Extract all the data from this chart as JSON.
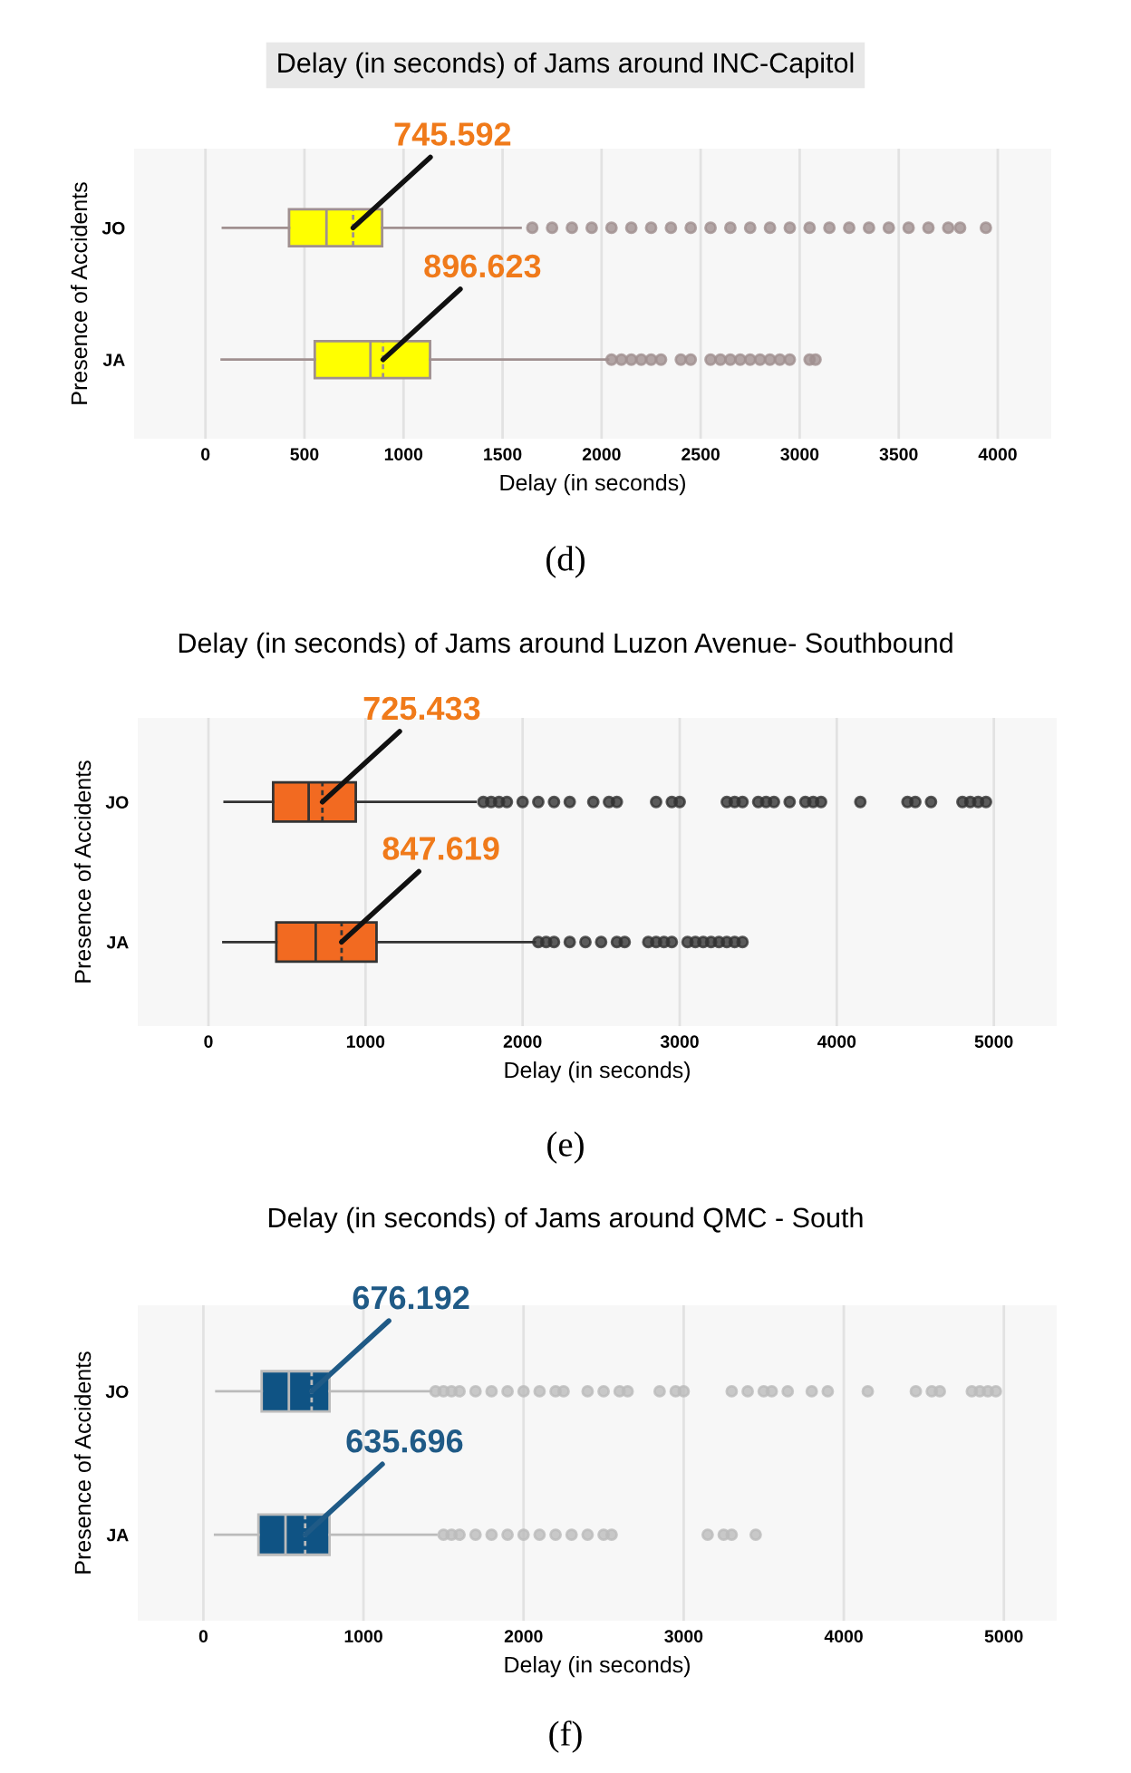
{
  "chart_data": [
    {
      "type": "box",
      "title": "Delay (in seconds) of Jams around INC-Capitol",
      "xlabel": "Delay (in seconds)",
      "ylabel": "Presence of Accidents",
      "orientation": "horizontal",
      "categories": [
        "JO",
        "JA"
      ],
      "xlim": [
        -360,
        4270
      ],
      "xticks": [
        0,
        500,
        1000,
        1500,
        2000,
        2500,
        3000,
        3500,
        4000
      ],
      "grid": "x",
      "series": [
        {
          "color": "#ffff00",
          "boxes": [
            {
              "low": 88,
              "q1": 422,
              "median": 611,
              "q3": 892,
              "high": 1591,
              "mean": 745.592,
              "outliers": [
                1650,
                1750,
                1850,
                1950,
                2050,
                2150,
                2250,
                2350,
                2450,
                2550,
                2650,
                2750,
                2850,
                2950,
                3050,
                3150,
                3250,
                3350,
                3450,
                3550,
                3650,
                3750,
                3810,
                3940
              ]
            },
            {
              "low": 82,
              "q1": 552,
              "median": 833,
              "q3": 1134,
              "high": 2033,
              "mean": 896.623,
              "outliers": [
                2050,
                2100,
                2150,
                2200,
                2250,
                2300,
                2400,
                2450,
                2550,
                2600,
                2650,
                2700,
                2750,
                2800,
                2850,
                2900,
                2950,
                3050,
                3080
              ]
            }
          ]
        }
      ],
      "annotations": [
        {
          "text": "745.592",
          "x": 745.592,
          "y": "JO"
        },
        {
          "text": "896.623",
          "x": 896.623,
          "y": "JA"
        },
        "(d)"
      ]
    },
    {
      "type": "box",
      "title": "Delay (in seconds) of Jams around Luzon Avenue- Southbound",
      "xlabel": "Delay (in seconds)",
      "ylabel": "Presence of Accidents",
      "orientation": "horizontal",
      "categories": [
        "JO",
        "JA"
      ],
      "xlim": [
        -450,
        5400
      ],
      "xticks": [
        0,
        1000,
        2000,
        3000,
        4000,
        5000
      ],
      "grid": "x",
      "series": [
        {
          "color": "#f26a21",
          "boxes": [
            {
              "low": 103,
              "q1": 412,
              "median": 638,
              "q3": 938,
              "high": 1700,
              "mean": 725.433,
              "outliers": [
                1750,
                1800,
                1850,
                1900,
                2000,
                2100,
                2200,
                2300,
                2450,
                2550,
                2600,
                2850,
                2950,
                3000,
                3300,
                3350,
                3400,
                3500,
                3550,
                3600,
                3700,
                3800,
                3850,
                3900,
                4150,
                4450,
                4500,
                4600,
                4800,
                4850,
                4900,
                4950
              ]
            },
            {
              "low": 95,
              "q1": 432,
              "median": 683,
              "q3": 1070,
              "high": 2078,
              "mean": 847.619,
              "outliers": [
                2100,
                2150,
                2200,
                2300,
                2400,
                2500,
                2600,
                2650,
                2800,
                2850,
                2900,
                2950,
                3050,
                3100,
                3150,
                3200,
                3250,
                3300,
                3350,
                3400
              ]
            }
          ]
        }
      ],
      "annotations": [
        {
          "text": "725.433",
          "x": 725.433,
          "y": "JO"
        },
        {
          "text": "847.619",
          "x": 847.619,
          "y": "JA"
        },
        "(e)"
      ]
    },
    {
      "type": "box",
      "title": "Delay (in seconds) of Jams around QMC - South",
      "xlabel": "Delay (in seconds)",
      "ylabel": "Presence of Accidents",
      "orientation": "horizontal",
      "categories": [
        "JO",
        "JA"
      ],
      "xlim": [
        -410,
        5330
      ],
      "xticks": [
        0,
        1000,
        2000,
        3000,
        4000,
        5000
      ],
      "grid": "x",
      "series": [
        {
          "color": "#0f5384",
          "boxes": [
            {
              "low": 81,
              "q1": 364,
              "median": 534,
              "q3": 788,
              "high": 1423,
              "mean": 676.192,
              "outliers": [
                1450,
                1500,
                1550,
                1600,
                1700,
                1800,
                1900,
                2000,
                2100,
                2200,
                2250,
                2400,
                2500,
                2600,
                2650,
                2850,
                2950,
                3000,
                3300,
                3400,
                3500,
                3550,
                3650,
                3800,
                3900,
                4150,
                4450,
                4550,
                4600,
                4800,
                4850,
                4900,
                4950
              ]
            },
            {
              "low": 73,
              "q1": 344,
              "median": 513,
              "q3": 788,
              "high": 1455,
              "mean": 635.696,
              "outliers": [
                1500,
                1550,
                1600,
                1700,
                1800,
                1900,
                2000,
                2100,
                2200,
                2300,
                2400,
                2500,
                2550,
                3150,
                3250,
                3300,
                3450
              ]
            }
          ]
        }
      ],
      "annotations": [
        {
          "text": "676.192",
          "x": 676.192,
          "y": "JO"
        },
        {
          "text": "635.696",
          "x": 635.696,
          "y": "JA"
        },
        "(f)"
      ]
    }
  ]
}
